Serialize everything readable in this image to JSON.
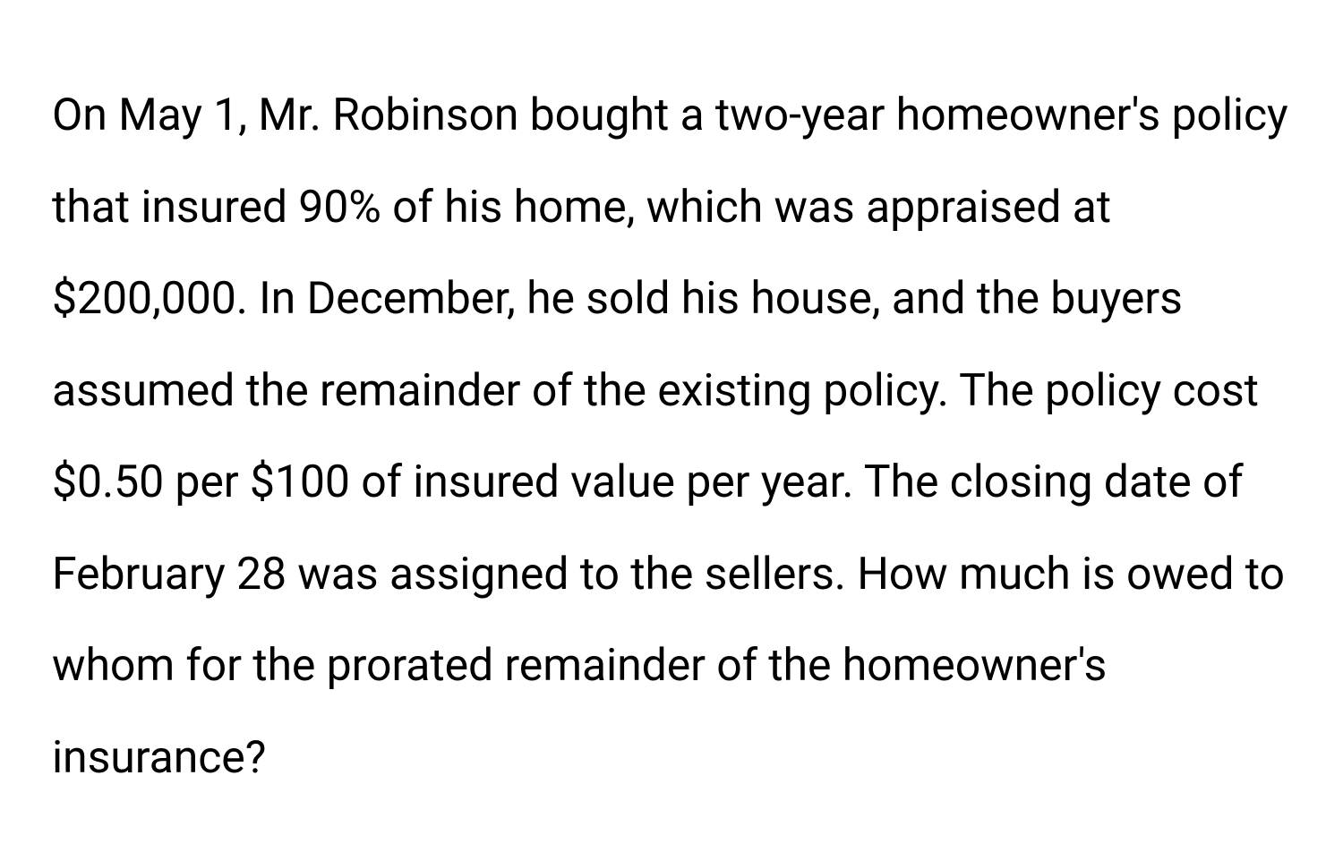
{
  "question": {
    "text": "On May 1, Mr. Robinson bought a two-year homeowner's policy that insured 90% of his home, which was appraised at $200,000. In December, he sold his house, and the buyers assumed the remainder of the existing policy. The policy cost $0.50 per $100 of insured value per year. The closing date of February 28 was assigned to the sellers. How much is owed to whom for the prorated remainder of the homeowner's insurance?",
    "fontsize": 50,
    "line_height": 2.05,
    "text_color": "#000000",
    "background_color": "#ffffff",
    "font_weight": 400
  }
}
